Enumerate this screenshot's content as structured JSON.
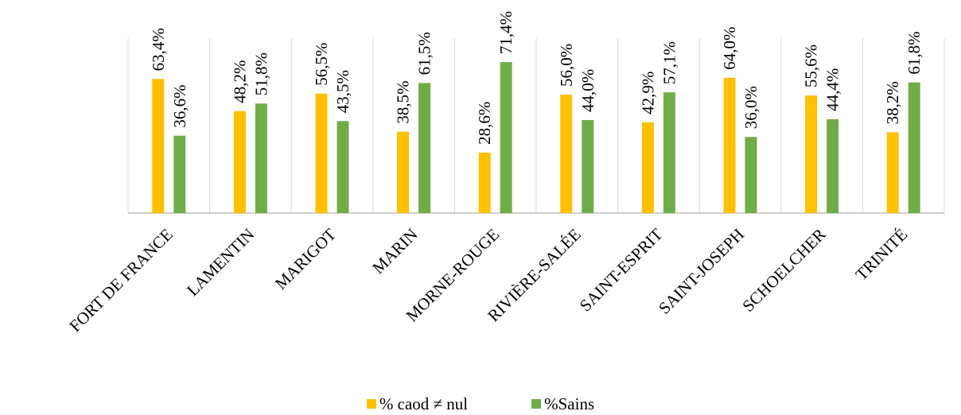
{
  "chart_data": {
    "type": "bar",
    "categories": [
      "FORT DE FRANCE",
      "LAMENTIN",
      "MARIGOT",
      "MARIN",
      "MORNE-ROUGE",
      "RIVIÈRE-SALÉE",
      "SAINT-ESPRIT",
      "SAINT-JOSEPH",
      "SCHOELCHER",
      "TRINITÉ"
    ],
    "series": [
      {
        "name": "% caod ≠ nul",
        "color": "#FFC000",
        "values": [
          63.4,
          48.2,
          56.5,
          38.5,
          28.6,
          56.0,
          42.9,
          64.0,
          55.6,
          38.2
        ],
        "labels": [
          "63,4%",
          "48,2%",
          "56,5%",
          "38,5%",
          "28,6%",
          "56,0%",
          "42,9%",
          "64,0%",
          "55,6%",
          "38,2%"
        ]
      },
      {
        "name": "%Sains",
        "color": "#70AD47",
        "values": [
          36.6,
          51.8,
          43.5,
          61.5,
          71.4,
          44.0,
          57.1,
          36.0,
          44.4,
          61.8
        ],
        "labels": [
          "36,6%",
          "51,8%",
          "43,5%",
          "61,5%",
          "71,4%",
          "44,0%",
          "57,1%",
          "36,0%",
          "44,4%",
          "61,8%"
        ]
      }
    ],
    "title": "",
    "xlabel": "",
    "ylabel": "",
    "ylim": [
      0,
      80
    ],
    "grid": false,
    "legend_position": "bottom"
  }
}
